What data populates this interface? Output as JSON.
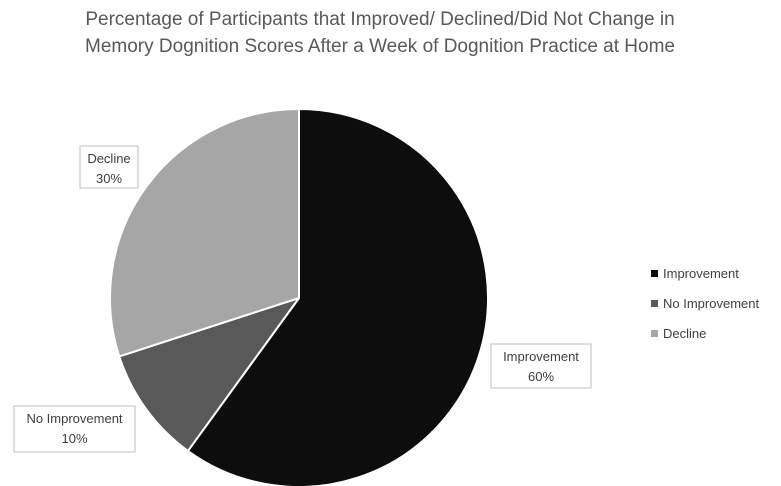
{
  "chart_data": {
    "type": "pie",
    "title_lines": [
      "Percentage of Participants that Improved/ Declined/Did Not Change in",
      "Memory Dognition Scores After a Week of Dognition Practice at Home"
    ],
    "slices": [
      {
        "label": "Improvement",
        "value": 60,
        "display": "60%",
        "color": "#0d0d0d"
      },
      {
        "label": "No Improvement",
        "value": 10,
        "display": "10%",
        "color": "#595959"
      },
      {
        "label": "Decline",
        "value": 30,
        "display": "30%",
        "color": "#a6a6a6"
      }
    ],
    "legend_position": "right",
    "start_angle_deg": 0,
    "direction": "clockwise"
  }
}
